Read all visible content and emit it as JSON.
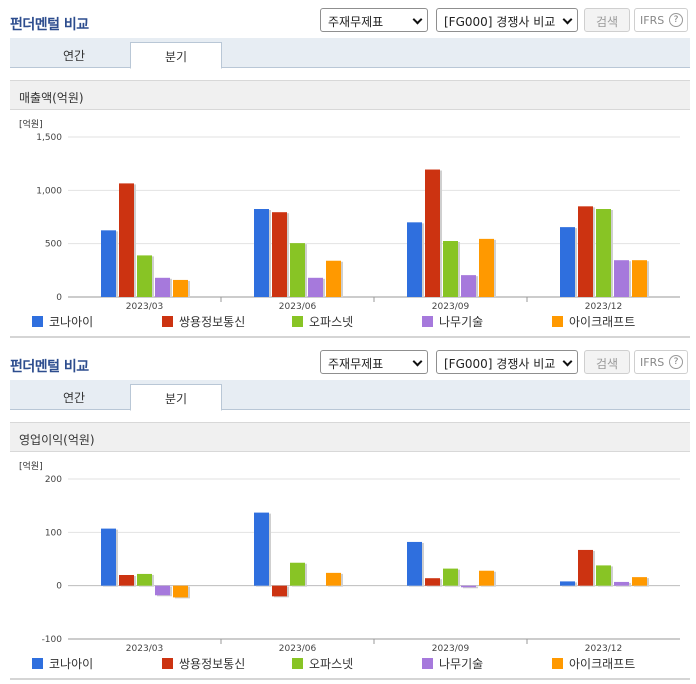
{
  "sections": [
    {
      "title": "펀더멘털 비교",
      "select1": "주재무제표",
      "select2": "[FG000] 경쟁사 비교",
      "search_label": "검색",
      "ifrs_label": "IFRS",
      "ifrs_help": "?",
      "tabs": [
        {
          "label": "연간"
        },
        {
          "label": "분기"
        }
      ],
      "active_tab": 1,
      "chart_header": "매출액(억원)"
    },
    {
      "title": "펀더멘털 비교",
      "select1": "주재무제표",
      "select2": "[FG000] 경쟁사 비교",
      "search_label": "검색",
      "ifrs_label": "IFRS",
      "ifrs_help": "?",
      "tabs": [
        {
          "label": "연간"
        },
        {
          "label": "분기"
        }
      ],
      "active_tab": 1,
      "chart_header": "영업이익(억원)"
    }
  ],
  "chart_data": [
    {
      "type": "bar",
      "unit_label": "[억원]",
      "categories": [
        "2023/03",
        "2023/06",
        "2023/09",
        "2023/12"
      ],
      "ylim": [
        0,
        1500
      ],
      "yticks": [
        0,
        500,
        1000,
        1500
      ],
      "ytick_labels": [
        "0",
        "500",
        "1,000",
        "1,500"
      ],
      "grid": true,
      "legend_position": "bottom",
      "series": [
        {
          "name": "코나아이",
          "color": "#2f6fde",
          "values": [
            625,
            825,
            700,
            655
          ]
        },
        {
          "name": "쌍용정보통신",
          "color": "#cc3311",
          "values": [
            1065,
            795,
            1195,
            850
          ]
        },
        {
          "name": "오파스넷",
          "color": "#88c425",
          "values": [
            390,
            505,
            525,
            825
          ]
        },
        {
          "name": "나무기술",
          "color": "#a679dc",
          "values": [
            180,
            180,
            205,
            345
          ]
        },
        {
          "name": "아이크래프트",
          "color": "#ff9900",
          "values": [
            160,
            340,
            545,
            345
          ]
        }
      ]
    },
    {
      "type": "bar",
      "unit_label": "[억원]",
      "categories": [
        "2023/03",
        "2023/06",
        "2023/09",
        "2023/12"
      ],
      "ylim": [
        -100,
        200
      ],
      "yticks": [
        -100,
        0,
        100,
        200
      ],
      "ytick_labels": [
        "-100",
        "0",
        "100",
        "200"
      ],
      "grid": true,
      "legend_position": "bottom",
      "series": [
        {
          "name": "코나아이",
          "color": "#2f6fde",
          "values": [
            107,
            137,
            82,
            8
          ]
        },
        {
          "name": "쌍용정보통신",
          "color": "#cc3311",
          "values": [
            20,
            -20,
            14,
            67
          ]
        },
        {
          "name": "오파스넷",
          "color": "#88c425",
          "values": [
            22,
            43,
            32,
            38
          ]
        },
        {
          "name": "나무기술",
          "color": "#a679dc",
          "values": [
            -18,
            0,
            -3,
            7
          ]
        },
        {
          "name": "아이크래프트",
          "color": "#ff9900",
          "values": [
            -22,
            24,
            28,
            16
          ]
        }
      ]
    }
  ]
}
